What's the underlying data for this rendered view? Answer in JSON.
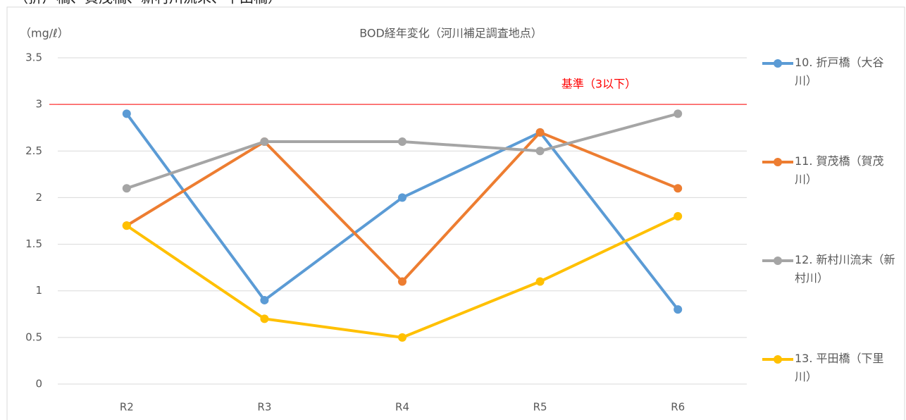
{
  "caption": "（折戸橋、賀茂橋、新村川流末、平田橋）",
  "chart_data": {
    "type": "line",
    "title": "BOD経年変化（河川補足調査地点）",
    "y_label": "（mg/ℓ）",
    "categories": [
      "R2",
      "R3",
      "R4",
      "R5",
      "R6"
    ],
    "series": [
      {
        "name": "10. 折戸橋（大谷川）",
        "color": "#5b9bd5",
        "values": [
          2.9,
          0.9,
          2.0,
          2.7,
          0.8
        ]
      },
      {
        "name": "11. 賀茂橋（賀茂川）",
        "color": "#ed7d31",
        "values": [
          1.7,
          2.6,
          1.1,
          2.7,
          2.1
        ]
      },
      {
        "name": "12. 新村川流末（新村川）",
        "color": "#a5a5a5",
        "values": [
          2.1,
          2.6,
          2.6,
          2.5,
          2.9
        ]
      },
      {
        "name": "13. 平田橋（下里川）",
        "color": "#ffc000",
        "values": [
          1.7,
          0.7,
          0.5,
          1.1,
          1.8
        ]
      }
    ],
    "reference": {
      "value": 3,
      "label": "基準（3以下）",
      "color": "#ff0000"
    },
    "ylim": [
      0,
      3.5
    ],
    "yticks": [
      0,
      0.5,
      1,
      1.5,
      2,
      2.5,
      3,
      3.5
    ],
    "grid": true,
    "legend": "right"
  }
}
